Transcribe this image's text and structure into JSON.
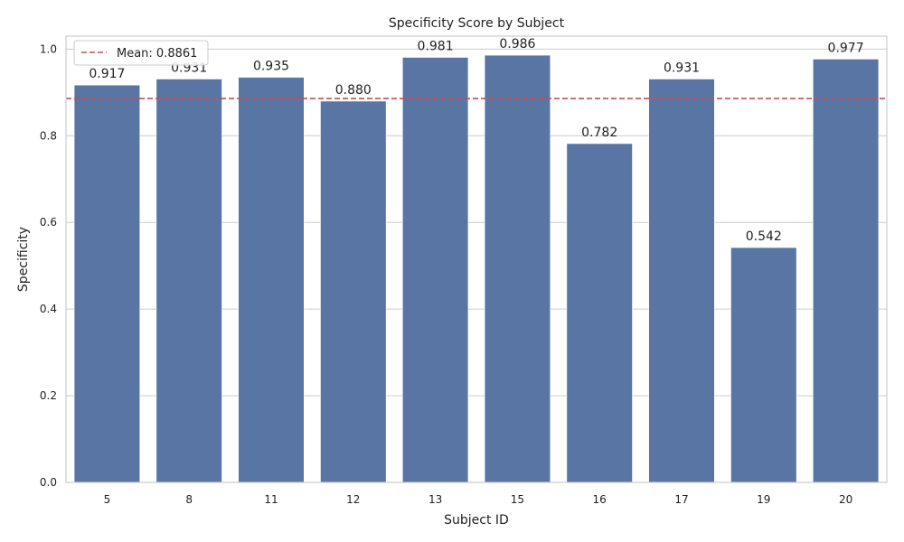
{
  "chart_data": {
    "type": "bar",
    "title": "Specificity Score by Subject",
    "xlabel": "Subject ID",
    "ylabel": "Specificity",
    "categories": [
      "5",
      "8",
      "11",
      "12",
      "13",
      "15",
      "16",
      "17",
      "19",
      "20"
    ],
    "values": [
      0.917,
      0.931,
      0.935,
      0.88,
      0.981,
      0.986,
      0.782,
      0.931,
      0.542,
      0.977
    ],
    "value_labels": [
      "0.917",
      "0.931",
      "0.935",
      "0.880",
      "0.981",
      "0.986",
      "0.782",
      "0.931",
      "0.542",
      "0.977"
    ],
    "ylim": [
      0,
      1.03
    ],
    "yticks": [
      0.0,
      0.2,
      0.4,
      0.6,
      0.8,
      1.0
    ],
    "ytick_labels": [
      "0.0",
      "0.2",
      "0.4",
      "0.6",
      "0.8",
      "1.0"
    ],
    "grid": true,
    "legend_position": "top-left",
    "mean_line": {
      "value": 0.8861,
      "label": "Mean: 0.8861",
      "color": "#c44e52",
      "style": "dashed"
    },
    "bar_color": "#5875a4"
  }
}
